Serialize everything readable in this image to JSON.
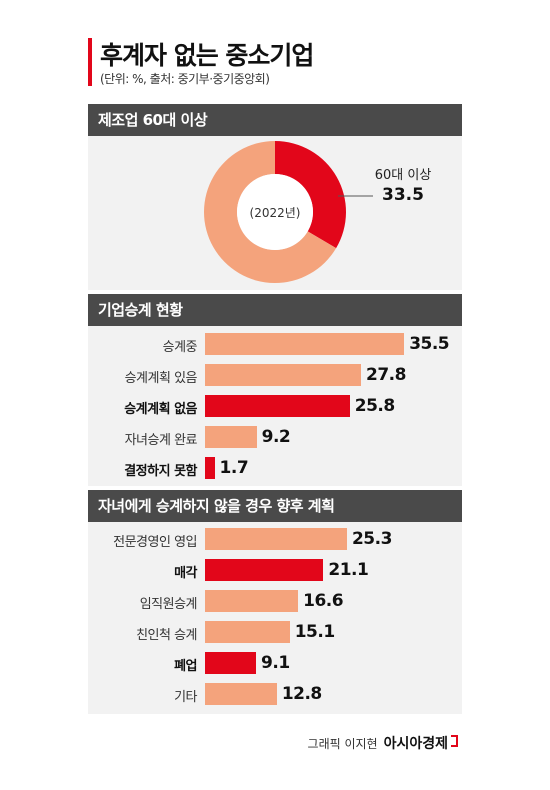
{
  "title": "후계자 없는 중소기업",
  "subtitle": "(단위: %, 출처: 중기부·중기중앙회)",
  "credit": {
    "graphic": "그래픽 이지현",
    "brand": "아시아경제"
  },
  "colors": {
    "accent": "#e2061a",
    "bar": "#f4a37c",
    "header": "#4a4a4a",
    "panel": "#f2f2f2"
  },
  "chart_data": [
    {
      "type": "pie",
      "title": "제조업 60대 이상",
      "center_label": "(2022년)",
      "slices": [
        {
          "name": "60대 이상",
          "value": 33.5,
          "label": "33.5",
          "highlight": true
        },
        {
          "name": "",
          "value": 66.5,
          "label": "",
          "highlight": false
        }
      ]
    },
    {
      "type": "bar",
      "orientation": "horizontal",
      "title": "기업승계 현황",
      "categories": [
        "승계중",
        "승계계획 있음",
        "승계계획 없음",
        "자녀승계 완료",
        "결정하지 못함"
      ],
      "values": [
        35.5,
        27.8,
        25.8,
        9.2,
        1.7
      ],
      "labels": [
        "35.5",
        "27.8",
        "25.8",
        "9.2",
        "1.7"
      ],
      "highlight": [
        false,
        false,
        true,
        false,
        true
      ],
      "xlim": [
        0,
        36
      ]
    },
    {
      "type": "bar",
      "orientation": "horizontal",
      "title": "자녀에게 승계하지 않을 경우 향후 계획",
      "categories": [
        "전문경영인 영입",
        "매각",
        "임직원승계",
        "친인척 승계",
        "폐업",
        "기타"
      ],
      "values": [
        25.3,
        21.1,
        16.6,
        15.1,
        9.1,
        12.8
      ],
      "labels": [
        "25.3",
        "21.1",
        "16.6",
        "15.1",
        "9.1",
        "12.8"
      ],
      "highlight": [
        false,
        true,
        false,
        false,
        true,
        false
      ],
      "xlim": [
        0,
        36
      ]
    }
  ]
}
